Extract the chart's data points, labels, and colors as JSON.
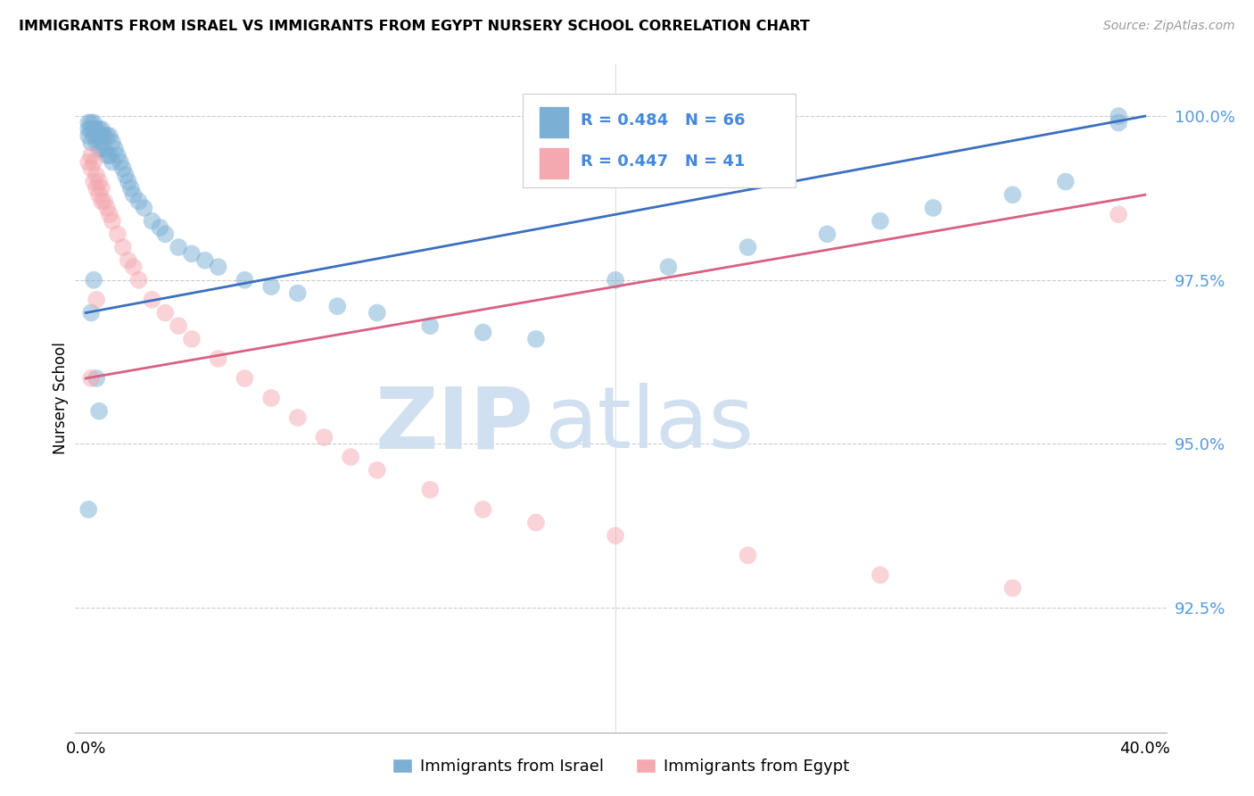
{
  "title": "IMMIGRANTS FROM ISRAEL VS IMMIGRANTS FROM EGYPT NURSERY SCHOOL CORRELATION CHART",
  "source": "Source: ZipAtlas.com",
  "ylabel": "Nursery School",
  "ytick_labels": [
    "100.0%",
    "97.5%",
    "95.0%",
    "92.5%"
  ],
  "ytick_values": [
    1.0,
    0.975,
    0.95,
    0.925
  ],
  "xlim": [
    -0.004,
    0.408
  ],
  "ylim": [
    0.906,
    1.008
  ],
  "legend_israel": "Immigrants from Israel",
  "legend_egypt": "Immigrants from Egypt",
  "R_israel": 0.484,
  "N_israel": 66,
  "R_egypt": 0.447,
  "N_egypt": 41,
  "color_israel": "#7BAFD4",
  "color_egypt": "#F4A8B0",
  "color_line_israel": "#3B6FBF",
  "color_line_egypt": "#D96080",
  "watermark_zip": "ZIP",
  "watermark_atlas": "atlas",
  "watermark_color": "#D0E0F0",
  "israel_line_x0": 0.0,
  "israel_line_y0": 0.97,
  "israel_line_x1": 0.4,
  "israel_line_y1": 1.0,
  "egypt_line_x0": 0.0,
  "egypt_line_y0": 0.96,
  "egypt_line_x1": 0.4,
  "egypt_line_y1": 0.988,
  "israel_x": [
    0.001,
    0.001,
    0.001,
    0.002,
    0.002,
    0.002,
    0.003,
    0.003,
    0.003,
    0.004,
    0.004,
    0.004,
    0.005,
    0.005,
    0.005,
    0.006,
    0.006,
    0.006,
    0.007,
    0.007,
    0.008,
    0.008,
    0.009,
    0.009,
    0.01,
    0.01,
    0.011,
    0.012,
    0.013,
    0.014,
    0.015,
    0.016,
    0.017,
    0.018,
    0.02,
    0.022,
    0.025,
    0.028,
    0.03,
    0.035,
    0.04,
    0.045,
    0.05,
    0.06,
    0.07,
    0.08,
    0.095,
    0.11,
    0.13,
    0.15,
    0.17,
    0.2,
    0.22,
    0.25,
    0.28,
    0.3,
    0.32,
    0.35,
    0.37,
    0.39,
    0.001,
    0.002,
    0.003,
    0.004,
    0.005,
    0.39
  ],
  "israel_y": [
    0.999,
    0.998,
    0.997,
    0.999,
    0.998,
    0.996,
    0.999,
    0.998,
    0.997,
    0.998,
    0.997,
    0.996,
    0.998,
    0.997,
    0.995,
    0.998,
    0.997,
    0.995,
    0.997,
    0.995,
    0.997,
    0.994,
    0.997,
    0.994,
    0.996,
    0.993,
    0.995,
    0.994,
    0.993,
    0.992,
    0.991,
    0.99,
    0.989,
    0.988,
    0.987,
    0.986,
    0.984,
    0.983,
    0.982,
    0.98,
    0.979,
    0.978,
    0.977,
    0.975,
    0.974,
    0.973,
    0.971,
    0.97,
    0.968,
    0.967,
    0.966,
    0.975,
    0.977,
    0.98,
    0.982,
    0.984,
    0.986,
    0.988,
    0.99,
    0.999,
    0.94,
    0.97,
    0.975,
    0.96,
    0.955,
    1.0
  ],
  "egypt_x": [
    0.001,
    0.002,
    0.002,
    0.003,
    0.003,
    0.004,
    0.004,
    0.005,
    0.005,
    0.006,
    0.006,
    0.007,
    0.008,
    0.009,
    0.01,
    0.012,
    0.014,
    0.016,
    0.018,
    0.02,
    0.025,
    0.03,
    0.035,
    0.04,
    0.05,
    0.06,
    0.07,
    0.08,
    0.09,
    0.1,
    0.11,
    0.13,
    0.15,
    0.17,
    0.2,
    0.25,
    0.3,
    0.35,
    0.39,
    0.002,
    0.004
  ],
  "egypt_y": [
    0.993,
    0.994,
    0.992,
    0.993,
    0.99,
    0.991,
    0.989,
    0.99,
    0.988,
    0.989,
    0.987,
    0.987,
    0.986,
    0.985,
    0.984,
    0.982,
    0.98,
    0.978,
    0.977,
    0.975,
    0.972,
    0.97,
    0.968,
    0.966,
    0.963,
    0.96,
    0.957,
    0.954,
    0.951,
    0.948,
    0.946,
    0.943,
    0.94,
    0.938,
    0.936,
    0.933,
    0.93,
    0.928,
    0.985,
    0.96,
    0.972
  ]
}
